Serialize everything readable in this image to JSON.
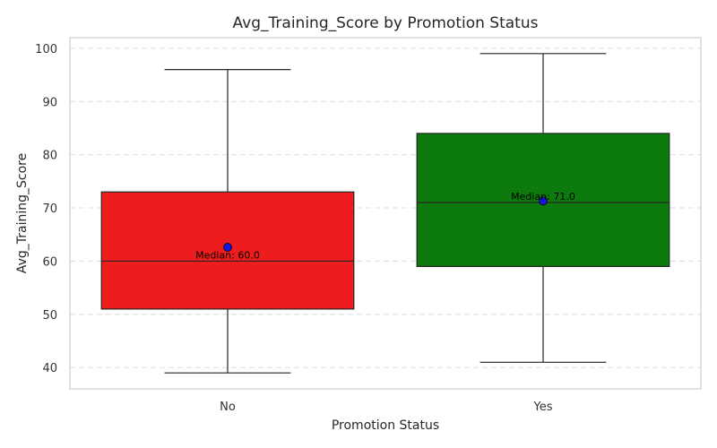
{
  "chart_data": {
    "type": "box",
    "title": "Avg_Training_Score by Promotion Status",
    "xlabel": "Promotion Status",
    "ylabel": "Avg_Training_Score",
    "ylim": [
      36,
      102
    ],
    "yticks": [
      40,
      50,
      60,
      70,
      80,
      90,
      100
    ],
    "grid": "horizontal dashed",
    "categories": [
      "No",
      "Yes"
    ],
    "boxes": [
      {
        "category": "No",
        "color": "#ee1c1c",
        "whisker_low": 39,
        "q1": 51,
        "median": 60,
        "q3": 73,
        "whisker_high": 96,
        "mean": 62.6,
        "median_label": "Median: 60.0"
      },
      {
        "category": "Yes",
        "color": "#0c7a0c",
        "whisker_low": 41,
        "q1": 59,
        "median": 71,
        "q3": 84,
        "whisker_high": 99,
        "mean": 71.3,
        "median_label": "Median: 71.0"
      }
    ],
    "mean_marker_color": "#1515e6"
  }
}
